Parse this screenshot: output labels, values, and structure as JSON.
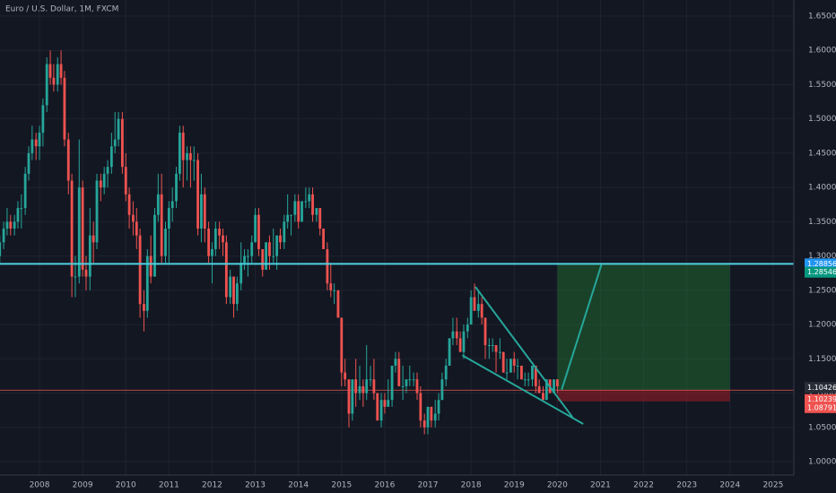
{
  "chart_data": {
    "type": "candlestick",
    "title": "Euro / U.S. Dollar, 1M, FXCM",
    "x": [
      2007.08,
      2007.17,
      2007.25,
      2007.33,
      2007.42,
      2007.5,
      2007.58,
      2007.67,
      2007.75,
      2007.83,
      2007.92,
      2008,
      2008.08,
      2008.17,
      2008.25,
      2008.33,
      2008.42,
      2008.5,
      2008.58,
      2008.67,
      2008.75,
      2008.83,
      2008.92,
      2009,
      2009.08,
      2009.17,
      2009.25,
      2009.33,
      2009.42,
      2009.5,
      2009.58,
      2009.67,
      2009.75,
      2009.83,
      2009.92,
      2010,
      2010.08,
      2010.17,
      2010.25,
      2010.33,
      2010.42,
      2010.5,
      2010.58,
      2010.67,
      2010.75,
      2010.83,
      2010.92,
      2011,
      2011.08,
      2011.17,
      2011.25,
      2011.33,
      2011.42,
      2011.5,
      2011.58,
      2011.67,
      2011.75,
      2011.83,
      2011.92,
      2012,
      2012.08,
      2012.17,
      2012.25,
      2012.33,
      2012.42,
      2012.5,
      2012.58,
      2012.67,
      2012.75,
      2012.83,
      2012.92,
      2013,
      2013.08,
      2013.17,
      2013.25,
      2013.33,
      2013.42,
      2013.5,
      2013.58,
      2013.67,
      2013.75,
      2013.83,
      2013.92,
      2014,
      2014.08,
      2014.17,
      2014.25,
      2014.33,
      2014.42,
      2014.5,
      2014.58,
      2014.67,
      2014.75,
      2014.83,
      2014.92,
      2015,
      2015.08,
      2015.17,
      2015.25,
      2015.33,
      2015.42,
      2015.5,
      2015.58,
      2015.67,
      2015.75,
      2015.83,
      2015.92,
      2016,
      2016.08,
      2016.17,
      2016.25,
      2016.33,
      2016.42,
      2016.5,
      2016.58,
      2016.67,
      2016.75,
      2016.83,
      2016.92,
      2017,
      2017.08,
      2017.17,
      2017.25,
      2017.33,
      2017.42,
      2017.5,
      2017.58,
      2017.67,
      2017.75,
      2017.83,
      2017.92,
      2018,
      2018.08,
      2018.17,
      2018.25,
      2018.33,
      2018.42,
      2018.5,
      2018.58,
      2018.67,
      2018.75,
      2018.83,
      2018.92,
      2019,
      2019.08,
      2019.17,
      2019.25,
      2019.33,
      2019.42,
      2019.5,
      2019.58,
      2019.67,
      2019.75,
      2019.83,
      2019.92,
      2020
    ],
    "open": [
      1.3,
      1.32,
      1.34,
      1.35,
      1.34,
      1.35,
      1.37,
      1.37,
      1.42,
      1.45,
      1.47,
      1.46,
      1.48,
      1.52,
      1.58,
      1.56,
      1.55,
      1.58,
      1.56,
      1.47,
      1.41,
      1.27,
      1.27,
      1.4,
      1.28,
      1.27,
      1.33,
      1.32,
      1.41,
      1.4,
      1.42,
      1.43,
      1.46,
      1.47,
      1.5,
      1.43,
      1.39,
      1.36,
      1.35,
      1.33,
      1.23,
      1.22,
      1.3,
      1.27,
      1.36,
      1.39,
      1.3,
      1.34,
      1.37,
      1.38,
      1.42,
      1.48,
      1.44,
      1.45,
      1.44,
      1.44,
      1.34,
      1.39,
      1.34,
      1.3,
      1.31,
      1.34,
      1.33,
      1.32,
      1.24,
      1.27,
      1.23,
      1.26,
      1.29,
      1.3,
      1.3,
      1.32,
      1.36,
      1.31,
      1.28,
      1.32,
      1.3,
      1.3,
      1.33,
      1.32,
      1.35,
      1.36,
      1.36,
      1.38,
      1.35,
      1.38,
      1.38,
      1.39,
      1.36,
      1.37,
      1.34,
      1.31,
      1.26,
      1.25,
      1.25,
      1.21,
      1.13,
      1.12,
      1.07,
      1.12,
      1.1,
      1.11,
      1.1,
      1.12,
      1.12,
      1.1,
      1.06,
      1.09,
      1.08,
      1.09,
      1.14,
      1.15,
      1.11,
      1.11,
      1.12,
      1.12,
      1.12,
      1.1,
      1.06,
      1.05,
      1.08,
      1.06,
      1.07,
      1.09,
      1.12,
      1.14,
      1.18,
      1.19,
      1.18,
      1.16,
      1.19,
      1.2,
      1.24,
      1.22,
      1.23,
      1.21,
      1.17,
      1.17,
      1.17,
      1.16,
      1.16,
      1.13,
      1.13,
      1.15,
      1.14,
      1.14,
      1.12,
      1.12,
      1.12,
      1.14,
      1.11,
      1.1,
      1.09,
      1.12,
      1.1,
      1.12
    ],
    "high": [
      1.33,
      1.35,
      1.37,
      1.36,
      1.36,
      1.38,
      1.39,
      1.43,
      1.46,
      1.49,
      1.48,
      1.49,
      1.53,
      1.59,
      1.6,
      1.58,
      1.59,
      1.6,
      1.57,
      1.48,
      1.42,
      1.3,
      1.47,
      1.41,
      1.3,
      1.37,
      1.35,
      1.42,
      1.42,
      1.43,
      1.44,
      1.48,
      1.51,
      1.51,
      1.51,
      1.45,
      1.4,
      1.38,
      1.37,
      1.34,
      1.25,
      1.31,
      1.33,
      1.37,
      1.42,
      1.42,
      1.35,
      1.38,
      1.4,
      1.43,
      1.49,
      1.49,
      1.46,
      1.46,
      1.46,
      1.45,
      1.42,
      1.4,
      1.35,
      1.32,
      1.35,
      1.35,
      1.34,
      1.33,
      1.28,
      1.27,
      1.27,
      1.32,
      1.31,
      1.31,
      1.33,
      1.37,
      1.37,
      1.31,
      1.32,
      1.33,
      1.34,
      1.33,
      1.34,
      1.36,
      1.39,
      1.36,
      1.39,
      1.39,
      1.38,
      1.4,
      1.4,
      1.4,
      1.37,
      1.37,
      1.34,
      1.32,
      1.29,
      1.26,
      1.25,
      1.21,
      1.15,
      1.12,
      1.12,
      1.15,
      1.14,
      1.12,
      1.17,
      1.14,
      1.15,
      1.1,
      1.1,
      1.1,
      1.12,
      1.14,
      1.16,
      1.16,
      1.14,
      1.12,
      1.14,
      1.13,
      1.13,
      1.11,
      1.07,
      1.08,
      1.08,
      1.09,
      1.1,
      1.13,
      1.15,
      1.18,
      1.21,
      1.21,
      1.19,
      1.2,
      1.21,
      1.25,
      1.26,
      1.25,
      1.24,
      1.21,
      1.18,
      1.18,
      1.17,
      1.18,
      1.16,
      1.15,
      1.15,
      1.16,
      1.15,
      1.14,
      1.13,
      1.13,
      1.14,
      1.14,
      1.12,
      1.11,
      1.12,
      1.12,
      1.12,
      1.12
    ],
    "low": [
      1.29,
      1.31,
      1.33,
      1.33,
      1.33,
      1.34,
      1.34,
      1.36,
      1.41,
      1.44,
      1.44,
      1.44,
      1.46,
      1.51,
      1.55,
      1.54,
      1.54,
      1.55,
      1.46,
      1.39,
      1.24,
      1.24,
      1.26,
      1.27,
      1.25,
      1.25,
      1.29,
      1.31,
      1.38,
      1.39,
      1.4,
      1.42,
      1.45,
      1.46,
      1.42,
      1.38,
      1.34,
      1.33,
      1.31,
      1.21,
      1.19,
      1.21,
      1.26,
      1.27,
      1.35,
      1.29,
      1.29,
      1.29,
      1.35,
      1.37,
      1.41,
      1.4,
      1.41,
      1.4,
      1.41,
      1.33,
      1.32,
      1.32,
      1.29,
      1.26,
      1.3,
      1.31,
      1.3,
      1.23,
      1.23,
      1.21,
      1.22,
      1.25,
      1.28,
      1.27,
      1.29,
      1.32,
      1.3,
      1.27,
      1.28,
      1.28,
      1.29,
      1.28,
      1.31,
      1.31,
      1.34,
      1.33,
      1.35,
      1.34,
      1.35,
      1.37,
      1.37,
      1.35,
      1.35,
      1.33,
      1.31,
      1.25,
      1.24,
      1.23,
      1.21,
      1.11,
      1.11,
      1.05,
      1.06,
      1.08,
      1.09,
      1.08,
      1.09,
      1.11,
      1.09,
      1.06,
      1.05,
      1.07,
      1.08,
      1.08,
      1.13,
      1.11,
      1.09,
      1.1,
      1.11,
      1.11,
      1.09,
      1.05,
      1.04,
      1.04,
      1.05,
      1.05,
      1.06,
      1.09,
      1.11,
      1.14,
      1.17,
      1.17,
      1.16,
      1.15,
      1.18,
      1.2,
      1.22,
      1.21,
      1.2,
      1.15,
      1.15,
      1.16,
      1.13,
      1.15,
      1.13,
      1.12,
      1.13,
      1.13,
      1.12,
      1.12,
      1.11,
      1.11,
      1.11,
      1.1,
      1.1,
      1.09,
      1.09,
      1.1,
      1.1,
      1.1
    ],
    "close": [
      1.32,
      1.34,
      1.35,
      1.34,
      1.35,
      1.37,
      1.37,
      1.42,
      1.45,
      1.47,
      1.46,
      1.48,
      1.52,
      1.58,
      1.56,
      1.55,
      1.58,
      1.56,
      1.47,
      1.41,
      1.27,
      1.27,
      1.4,
      1.28,
      1.27,
      1.33,
      1.32,
      1.41,
      1.4,
      1.42,
      1.43,
      1.46,
      1.47,
      1.5,
      1.43,
      1.39,
      1.36,
      1.35,
      1.33,
      1.23,
      1.22,
      1.3,
      1.27,
      1.36,
      1.39,
      1.3,
      1.34,
      1.37,
      1.38,
      1.42,
      1.48,
      1.44,
      1.45,
      1.44,
      1.44,
      1.34,
      1.39,
      1.34,
      1.3,
      1.31,
      1.34,
      1.33,
      1.32,
      1.24,
      1.27,
      1.23,
      1.26,
      1.29,
      1.3,
      1.3,
      1.32,
      1.36,
      1.31,
      1.28,
      1.32,
      1.3,
      1.3,
      1.33,
      1.32,
      1.35,
      1.36,
      1.36,
      1.38,
      1.35,
      1.38,
      1.38,
      1.39,
      1.36,
      1.37,
      1.34,
      1.31,
      1.26,
      1.25,
      1.25,
      1.21,
      1.13,
      1.12,
      1.07,
      1.12,
      1.1,
      1.11,
      1.1,
      1.12,
      1.12,
      1.1,
      1.06,
      1.09,
      1.08,
      1.09,
      1.14,
      1.15,
      1.11,
      1.11,
      1.12,
      1.12,
      1.12,
      1.1,
      1.06,
      1.05,
      1.08,
      1.06,
      1.07,
      1.09,
      1.12,
      1.14,
      1.18,
      1.19,
      1.18,
      1.16,
      1.19,
      1.2,
      1.24,
      1.22,
      1.23,
      1.21,
      1.17,
      1.17,
      1.17,
      1.16,
      1.16,
      1.13,
      1.13,
      1.15,
      1.14,
      1.14,
      1.12,
      1.12,
      1.12,
      1.14,
      1.11,
      1.1,
      1.09,
      1.12,
      1.1,
      1.12,
      1.11
    ],
    "up_color": "#26a69a",
    "down_color": "#ef5350",
    "xlim": [
      2007.085,
      2025.48
    ],
    "xticks": [
      2008,
      2009,
      2010,
      2011,
      2012,
      2013,
      2014,
      2015,
      2016,
      2017,
      2018,
      2019,
      2020,
      2021,
      2022,
      2023,
      2024,
      2025
    ],
    "ylim": [
      0.9804,
      1.6735
    ],
    "yticks": [
      {
        "value": 1.0,
        "label": "1.00000"
      },
      {
        "value": 1.05,
        "label": "1.05000"
      },
      {
        "value": 1.1,
        "label": "1.10000"
      },
      {
        "value": 1.15,
        "label": "1.15000"
      },
      {
        "value": 1.2,
        "label": "1.20000"
      },
      {
        "value": 1.25,
        "label": "1.25000"
      },
      {
        "value": 1.3,
        "label": "1.30000"
      },
      {
        "value": 1.35,
        "label": "1.35000"
      },
      {
        "value": 1.4,
        "label": "1.40000"
      },
      {
        "value": 1.45,
        "label": "1.45000"
      },
      {
        "value": 1.5,
        "label": "1.50000"
      },
      {
        "value": 1.55,
        "label": "1.55000"
      },
      {
        "value": 1.6,
        "label": "1.60000"
      },
      {
        "value": 1.65,
        "label": "1.65000"
      }
    ],
    "grid": true,
    "horizontal_line": {
      "value": 1.28856,
      "color": "#4dd0e1"
    },
    "position": {
      "x": [
        2020.0,
        2024.0
      ],
      "entry": 1.10426,
      "target": 1.28546,
      "stop": 1.08791
    },
    "last_price": 1.10239,
    "trendlines": [
      {
        "x": [
          2018.1,
          2020.35
        ],
        "y": [
          1.255,
          1.065
        ]
      },
      {
        "x": [
          2017.8,
          2020.6
        ],
        "y": [
          1.155,
          1.055
        ]
      },
      {
        "x": [
          2020.1,
          2021.02
        ],
        "y": [
          1.105,
          1.287
        ]
      }
    ]
  }
}
